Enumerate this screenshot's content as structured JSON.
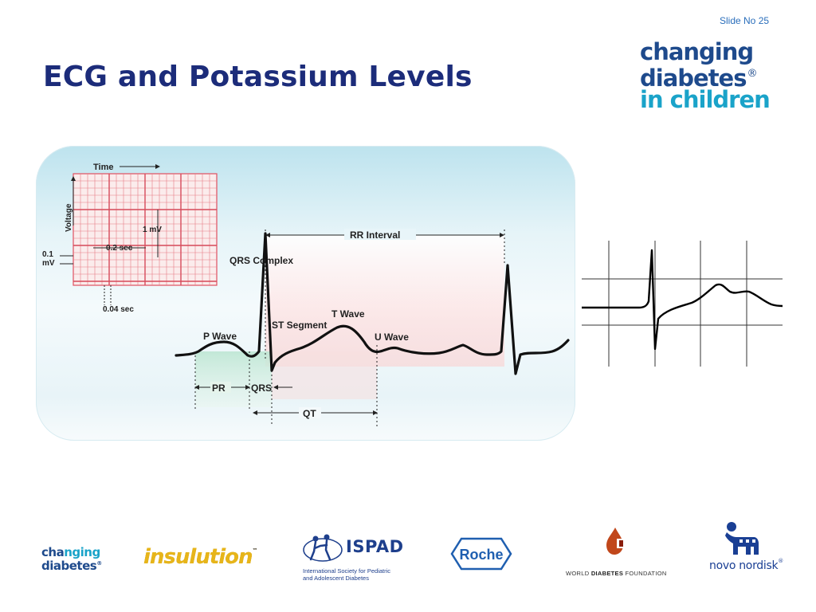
{
  "slide": {
    "number_label": "Slide No 25",
    "title": "ECG and Potassium Levels"
  },
  "brand_logo": {
    "line1": "changing",
    "line2": "diabetes",
    "line3": "in children",
    "mark": "®",
    "colors": {
      "dark": "#1e4a8c",
      "light": "#1aa3c9"
    }
  },
  "ecg_diagram": {
    "grid": {
      "time_label": "Time",
      "voltage_label": "Voltage",
      "mv_label": "1 mV",
      "sec_label": "0.2 sec",
      "small_mv_label_1": "0.1",
      "small_mv_label_2": "mV",
      "small_sec_label": "0.04 sec"
    },
    "labels": {
      "rr_interval": "RR Interval",
      "qrs_complex": "QRS Complex",
      "p_wave": "P Wave",
      "st_segment": "ST Segment",
      "t_wave": "T Wave",
      "u_wave": "U Wave",
      "pr": "PR",
      "qrs": "QRS",
      "qt": "QT"
    },
    "colors": {
      "grid": "#e05060",
      "trace": "#111111"
    }
  },
  "footer_logos": {
    "changing_diabetes": {
      "line1a": "cha",
      "line1b": "nging",
      "line2": "diabetes",
      "mark": "®"
    },
    "insulution": {
      "text": "insulution",
      "mark": "™"
    },
    "ispad": {
      "name": "ISPAD",
      "sub1": "International Society for Pediatric",
      "sub2": "and Adolescent Diabetes"
    },
    "roche": {
      "text": "Roche"
    },
    "wdf": {
      "prefix": "WORLD ",
      "bold": "DIABETES",
      "suffix": " FOUNDATION"
    },
    "novo_nordisk": {
      "text": "novo nordisk",
      "mark": "®"
    }
  }
}
